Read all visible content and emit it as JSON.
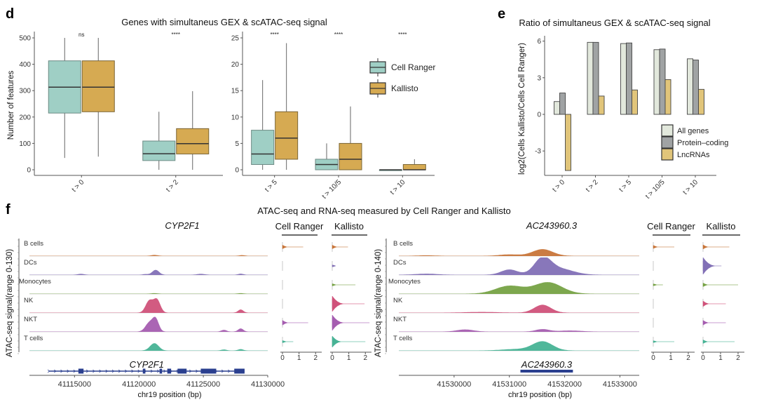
{
  "chart_data": [
    {
      "panel": "d",
      "type": "box",
      "title": "Genes with simultaneus GEX & scATAC-seq signal",
      "ylabel": "Number of features",
      "legend": {
        "placement": "right",
        "entries": [
          {
            "name": "Cell Ranger",
            "color": "#9fcfc5"
          },
          {
            "name": "Kallisto",
            "color": "#d6aa52"
          }
        ]
      },
      "subplots": [
        {
          "ylim": [
            0,
            520
          ],
          "yticks": [
            0,
            100,
            200,
            300,
            400,
            500
          ],
          "categories": [
            "t > 0",
            "t > 2"
          ],
          "significance": [
            "ns",
            "****"
          ],
          "series": [
            {
              "name": "Cell Ranger",
              "boxes": [
                {
                  "min": 45,
                  "q1": 215,
                  "median": 313,
                  "q3": 413,
                  "max": 500
                },
                {
                  "min": 0,
                  "q1": 35,
                  "median": 61,
                  "q3": 109,
                  "max": 220
                }
              ]
            },
            {
              "name": "Kallisto",
              "boxes": [
                {
                  "min": 50,
                  "q1": 220,
                  "median": 313,
                  "q3": 413,
                  "max": 500
                },
                {
                  "min": 0,
                  "q1": 60,
                  "median": 99,
                  "q3": 156,
                  "max": 298
                }
              ]
            }
          ]
        },
        {
          "ylim": [
            0,
            26
          ],
          "yticks": [
            0,
            5,
            10,
            15,
            20,
            25
          ],
          "categories": [
            "t > 5",
            "t > 10/5",
            "t > 10"
          ],
          "significance": [
            "****",
            "****",
            "****"
          ],
          "series": [
            {
              "name": "Cell Ranger",
              "boxes": [
                {
                  "min": 0,
                  "q1": 1,
                  "median": 3,
                  "q3": 7.5,
                  "max": 17
                },
                {
                  "min": 0,
                  "q1": 0,
                  "median": 1,
                  "q3": 2,
                  "max": 5
                },
                {
                  "min": 0,
                  "q1": 0,
                  "median": 0,
                  "q3": 0,
                  "max": 0
                }
              ]
            },
            {
              "name": "Kallisto",
              "boxes": [
                {
                  "min": 0,
                  "q1": 2,
                  "median": 6,
                  "q3": 11,
                  "max": 24
                },
                {
                  "min": 0,
                  "q1": 0,
                  "median": 2,
                  "q3": 5,
                  "max": 12
                },
                {
                  "min": 0,
                  "q1": 0,
                  "median": 0,
                  "q3": 1,
                  "max": 2
                }
              ]
            }
          ]
        }
      ]
    },
    {
      "panel": "e",
      "type": "bar",
      "title": "Ratio of simultaneus GEX & scATAC-seq signal",
      "ylabel": "log2(Cells Kallisto/Cells Cell Ranger)",
      "xlabel": "",
      "ylim": [
        -5,
        6.5
      ],
      "yticks": [
        -3,
        0,
        3,
        6
      ],
      "categories": [
        "t > 0",
        "t > 2",
        "t > 5",
        "t > 10/5",
        "t > 10"
      ],
      "legend": {
        "placement": "bottom-right"
      },
      "series": [
        {
          "name": "All genes",
          "color": "#e2e8dc",
          "values": [
            1.05,
            5.9,
            5.8,
            5.3,
            4.55
          ]
        },
        {
          "name": "Protein–coding",
          "color": "#a0a3a4",
          "values": [
            1.75,
            5.9,
            5.85,
            5.35,
            4.45
          ]
        },
        {
          "name": "LncRNAs",
          "color": "#e1c57a",
          "values": [
            -4.6,
            1.5,
            2.0,
            2.85,
            2.05
          ]
        }
      ]
    },
    {
      "panel": "f",
      "type": "area",
      "title": "ATAC-seq and RNA-seq measured by Cell Ranger and Kallisto",
      "cell_types": [
        "B cells",
        "DCs",
        "Monocytes",
        "NK",
        "NKT",
        "T cells"
      ],
      "cell_colors": [
        "#c87539",
        "#8270b6",
        "#76a244",
        "#d0527a",
        "#a55db0",
        "#47b395"
      ],
      "violin_xticks": [
        0,
        1,
        2
      ],
      "violin_columns": [
        "Cell Ranger",
        "Kallisto"
      ],
      "genes": [
        {
          "name": "CYP2F1",
          "ylabel": "ATAC-seq signal(range 0-130)",
          "xlabel": "chr19 position (bp)",
          "xlim": [
            41111500,
            41130000
          ],
          "xticks": [
            41115000,
            41120000,
            41125000,
            41130000
          ],
          "gene_span": [
            41113000,
            41128200
          ],
          "exons": [
            [
              41115300,
              41115700
            ],
            [
              41120300,
              41120500
            ],
            [
              41121600,
              41121800
            ],
            [
              41122200,
              41122500
            ],
            [
              41123000,
              41123700
            ],
            [
              41124800,
              41126000
            ],
            [
              41127400,
              41128200
            ]
          ],
          "peaks": [
            [
              [
                41121200,
                0.05,
                250
              ],
              [
                41128000,
                0.04,
                200
              ]
            ],
            [
              [
                41121300,
                0.28,
                260
              ],
              [
                41115500,
                0.05,
                250
              ],
              [
                41124800,
                0.05,
                300
              ],
              [
                41127900,
                0.06,
                200
              ],
              [
                41120500,
                0.04,
                200
              ]
            ],
            [
              [
                41121200,
                0.03,
                250
              ],
              [
                41127900,
                0.03,
                200
              ]
            ],
            [
              [
                41120800,
                0.68,
                280
              ],
              [
                41121400,
                0.74,
                260
              ],
              [
                41127900,
                0.18,
                200
              ]
            ],
            [
              [
                41120800,
                0.5,
                300
              ],
              [
                41121300,
                0.7,
                240
              ],
              [
                41126600,
                0.1,
                200
              ],
              [
                41127900,
                0.18,
                200
              ]
            ],
            [
              [
                41121200,
                0.42,
                330
              ],
              [
                41126600,
                0.06,
                200
              ],
              [
                41127900,
                0.08,
                200
              ]
            ]
          ],
          "violins": {
            "Cell Ranger": [
              {
                "max": 1.25,
                "width": 0.08
              },
              {
                "max": 0,
                "width": 0
              },
              {
                "max": 0,
                "width": 0
              },
              {
                "max": 0,
                "width": 0
              },
              {
                "max": 1.55,
                "width": 0.12
              },
              {
                "max": 0.65,
                "width": 0.03
              }
            ],
            "Kallisto": [
              {
                "max": 0.95,
                "width": 0.08
              },
              {
                "max": 0,
                "width": 0.02
              },
              {
                "max": 1.4,
                "width": 0.03
              },
              {
                "max": 1.95,
                "width": 0.5
              },
              {
                "max": 2.25,
                "width": 0.5
              },
              {
                "max": 2.0,
                "width": 0.35
              }
            ]
          }
        },
        {
          "name": "AC243960.3",
          "ylabel": "ATAC-seq signal(range 0-140)",
          "xlabel": "chr19 position (bp)",
          "xlim": [
            41529000,
            41533350
          ],
          "xticks": [
            41530000,
            41531000,
            41532000,
            41533000
          ],
          "gene_span": [
            41531200,
            41532150
          ],
          "exons": [
            [
              41531200,
              41532150
            ]
          ],
          "peaks": [
            [
              [
                41531600,
                0.38,
                180
              ],
              [
                41531000,
                0.08,
                180
              ],
              [
                41529500,
                0.03,
                150
              ]
            ],
            [
              [
                41531600,
                0.88,
                150
              ],
              [
                41531900,
                0.35,
                250
              ],
              [
                41531000,
                0.3,
                150
              ],
              [
                41529500,
                0.06,
                200
              ]
            ],
            [
              [
                41531700,
                0.65,
                250
              ],
              [
                41531000,
                0.45,
                250
              ]
            ],
            [
              [
                41531600,
                0.45,
                150
              ],
              [
                41530500,
                0.04,
                300
              ]
            ],
            [
              [
                41531600,
                0.14,
                120
              ],
              [
                41530200,
                0.12,
                150
              ],
              [
                41532100,
                0.06,
                200
              ]
            ],
            [
              [
                41531600,
                0.52,
                180
              ],
              [
                41531100,
                0.08,
                250
              ]
            ]
          ],
          "violins": {
            "Cell Ranger": [
              {
                "max": 1.2,
                "width": 0.06
              },
              {
                "max": 0,
                "width": 0
              },
              {
                "max": 0.55,
                "width": 0.02
              },
              {
                "max": 0,
                "width": 0
              },
              {
                "max": 0,
                "width": 0
              },
              {
                "max": 1.2,
                "width": 0.02
              }
            ],
            "Kallisto": [
              {
                "max": 1.5,
                "width": 0.1
              },
              {
                "max": 1.05,
                "width": 0.55
              },
              {
                "max": 2.0,
                "width": 0.08
              },
              {
                "max": 1.3,
                "width": 0.15
              },
              {
                "max": 1.3,
                "width": 0.12
              },
              {
                "max": 1.8,
                "width": 0.08
              }
            ]
          }
        }
      ]
    }
  ],
  "labels": {
    "panel_d": "d",
    "panel_e": "e",
    "panel_f": "f"
  }
}
